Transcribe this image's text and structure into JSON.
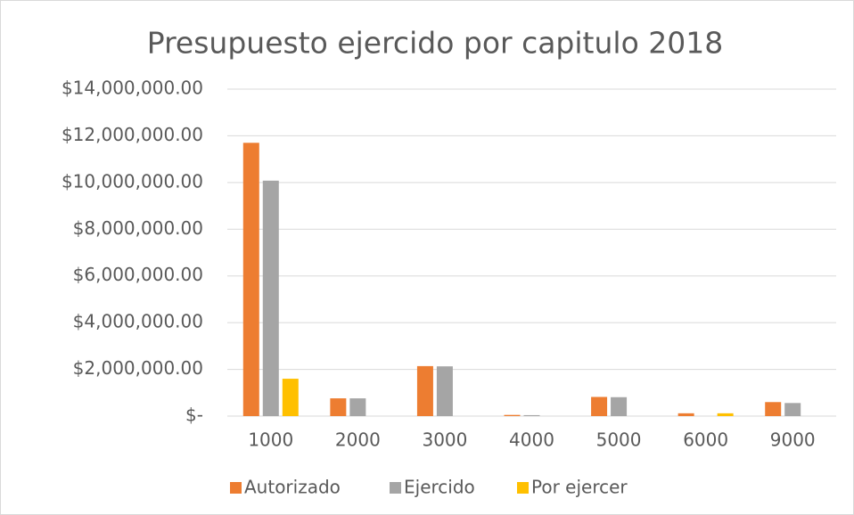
{
  "chart_data": {
    "type": "bar",
    "title": "Presupuesto ejercido por capitulo 2018",
    "categories": [
      "1000",
      "2000",
      "3000",
      "4000",
      "5000",
      "6000",
      "9000"
    ],
    "series": [
      {
        "name": "Autorizado",
        "color": "#ED7D31",
        "values": [
          11700000,
          760000,
          2140000,
          50000,
          820000,
          120000,
          600000
        ]
      },
      {
        "name": "Ejercido",
        "color": "#A5A5A5",
        "values": [
          10080000,
          760000,
          2130000,
          40000,
          810000,
          0,
          560000
        ]
      },
      {
        "name": "Por ejercer",
        "color": "#FFC000",
        "values": [
          1600000,
          0,
          0,
          0,
          0,
          120000,
          0
        ]
      }
    ],
    "ylim": [
      0,
      14000000
    ],
    "yticks": [
      {
        "value": 0,
        "label": "$-"
      },
      {
        "value": 2000000,
        "label": "$2,000,000.00"
      },
      {
        "value": 4000000,
        "label": "$4,000,000.00"
      },
      {
        "value": 6000000,
        "label": "$6,000,000.00"
      },
      {
        "value": 8000000,
        "label": "$8,000,000.00"
      },
      {
        "value": 10000000,
        "label": "$10,000,000.00"
      },
      {
        "value": 12000000,
        "label": "$12,000,000.00"
      },
      {
        "value": 14000000,
        "label": "$14,000,000.00"
      }
    ],
    "grid": true
  }
}
